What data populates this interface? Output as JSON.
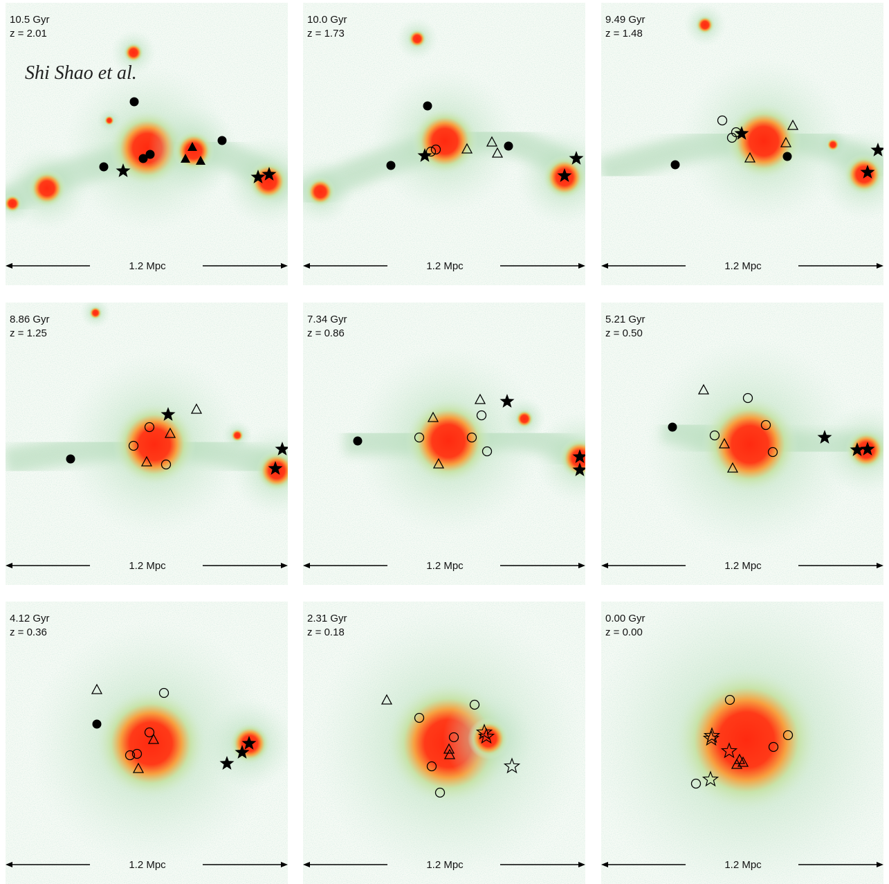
{
  "author_label": "Shi Shao et al.",
  "panels": [
    {
      "time": "10.5 Gyr",
      "redshift": "z = 2.01",
      "scale": "1.2 Mpc"
    },
    {
      "time": "10.0 Gyr",
      "redshift": "z = 1.73",
      "scale": "1.2 Mpc"
    },
    {
      "time": "9.49 Gyr",
      "redshift": "z = 1.48",
      "scale": "1.2 Mpc"
    },
    {
      "time": "8.86 Gyr",
      "redshift": "z = 1.25",
      "scale": "1.2 Mpc"
    },
    {
      "time": "7.34 Gyr",
      "redshift": "z = 0.86",
      "scale": "1.2 Mpc"
    },
    {
      "time": "5.21 Gyr",
      "redshift": "z = 0.50",
      "scale": "1.2 Mpc"
    },
    {
      "time": "4.12 Gyr",
      "redshift": "z = 0.36",
      "scale": "1.2 Mpc"
    },
    {
      "time": "2.31 Gyr",
      "redshift": "z = 0.18",
      "scale": "1.2 Mpc"
    },
    {
      "time": "0.00 Gyr",
      "redshift": "z = 0.00",
      "scale": "1.2 Mpc"
    }
  ]
}
